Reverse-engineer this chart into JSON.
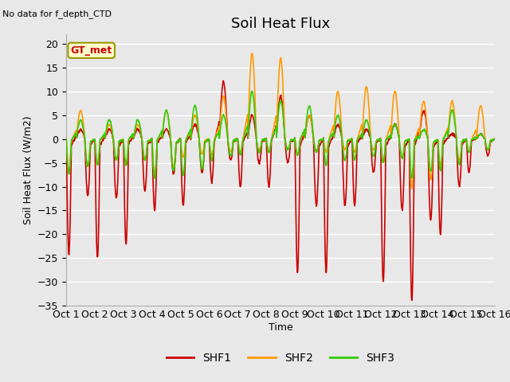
{
  "title": "Soil Heat Flux",
  "top_left_text": "No data for f_depth_CTD",
  "box_label": "GT_met",
  "ylabel": "Soil Heat Flux (W/m2)",
  "xlabel": "Time",
  "ylim": [
    -35,
    22
  ],
  "yticks": [
    -35,
    -30,
    -25,
    -20,
    -15,
    -10,
    -5,
    0,
    5,
    10,
    15,
    20
  ],
  "xtick_labels": [
    "Oct 1",
    "Oct 2",
    "Oct 3",
    "Oct 4",
    "Oct 5",
    "Oct 6",
    "Oct 7",
    "Oct 8",
    "Oct 9",
    "Oct 10",
    "Oct 11",
    "Oct 12",
    "Oct 13",
    "Oct 14",
    "Oct 15",
    "Oct 16"
  ],
  "line_colors": [
    "#cc0000",
    "#ff9900",
    "#33cc00"
  ],
  "line_labels": [
    "SHF1",
    "SHF2",
    "SHF3"
  ],
  "fig_bg_color": "#e8e8e8",
  "plot_bg_color": "#e8e8e8",
  "grid_color": "#ffffff",
  "box_label_color": "#cc0000",
  "box_fill_color": "#ffffcc",
  "box_edge_color": "#999900",
  "title_fontsize": 13,
  "axis_label_fontsize": 9,
  "tick_fontsize": 9,
  "legend_fontsize": 10,
  "n_days": 15,
  "pts_per_day": 96
}
